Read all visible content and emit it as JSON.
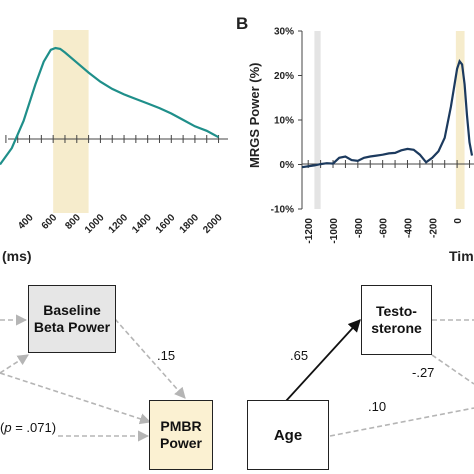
{
  "colors": {
    "panel_a_line": "#1f8f8a",
    "panel_b_line": "#1c3a5e",
    "highlight": "#f6eccc",
    "baseline_shade": "#e4e4e4",
    "beta_box": "#e6e6e6",
    "pmbr_box": "#fbf1d2"
  },
  "chart_data": [
    {
      "type": "line",
      "panel": "",
      "title": "",
      "xlabel": "(ms)",
      "ylabel": "",
      "x_ticks": [
        "400",
        "600",
        "800",
        "1000",
        "1200",
        "1400",
        "1600",
        "1800",
        "2000"
      ],
      "xlim": [
        150,
        2080
      ],
      "ylim": [
        -0.3,
        1.1
      ],
      "highlight_range": [
        600,
        900
      ],
      "series": [
        {
          "x": [
            150,
            250,
            350,
            450,
            520,
            580,
            620,
            660,
            700,
            800,
            900,
            1000,
            1100,
            1200,
            1300,
            1400,
            1500,
            1600,
            1700,
            1800,
            1900,
            2000
          ],
          "y": [
            -0.28,
            -0.1,
            0.2,
            0.6,
            0.85,
            0.98,
            1.0,
            0.99,
            0.95,
            0.84,
            0.73,
            0.63,
            0.55,
            0.49,
            0.44,
            0.39,
            0.34,
            0.28,
            0.21,
            0.14,
            0.09,
            0.02
          ]
        }
      ]
    },
    {
      "type": "line",
      "panel": "B",
      "title": "",
      "xlabel": "Tim",
      "ylabel": "MRGS Power (%)",
      "y_ticks": [
        "30%",
        "20%",
        "10%",
        "0%",
        "-10%"
      ],
      "x_ticks": [
        "-1200",
        "-1000",
        "-800",
        "-600",
        "-400",
        "-200",
        "0"
      ],
      "ylim": [
        -10,
        30
      ],
      "xlim": [
        -1250,
        120
      ],
      "baseline_range": [
        -1150,
        -1100
      ],
      "highlight_range": [
        -10,
        60
      ],
      "series": [
        {
          "x": [
            -1250,
            -1150,
            -1100,
            -1050,
            -1000,
            -950,
            -900,
            -850,
            -800,
            -750,
            -700,
            -650,
            -600,
            -550,
            -500,
            -450,
            -400,
            -350,
            -300,
            -250,
            -200,
            -150,
            -100,
            -50,
            0,
            20,
            40,
            60,
            80,
            100,
            120
          ],
          "y": [
            -0.6,
            -0.2,
            0.1,
            0.3,
            0.2,
            1.5,
            1.8,
            1.0,
            0.8,
            1.5,
            1.8,
            2.0,
            2.2,
            2.5,
            2.6,
            3.2,
            3.5,
            3.3,
            2.2,
            0.5,
            1.5,
            3.0,
            6.0,
            13.0,
            21.5,
            23.2,
            22.5,
            18.0,
            11.0,
            5.0,
            2.0
          ]
        }
      ]
    }
  ],
  "panel_b_label": "B",
  "diagram": {
    "baseline_box": "Baseline\nBeta Power",
    "pmbr_box": "PMBR\nPower",
    "age_box": "Age",
    "testo_box": "Testo-\nsterone",
    "coef_15": ".15",
    "coef_65": ".65",
    "coef_neg27": "-.27",
    "coef_10": ".10",
    "coef_p": "(p = .071)"
  }
}
